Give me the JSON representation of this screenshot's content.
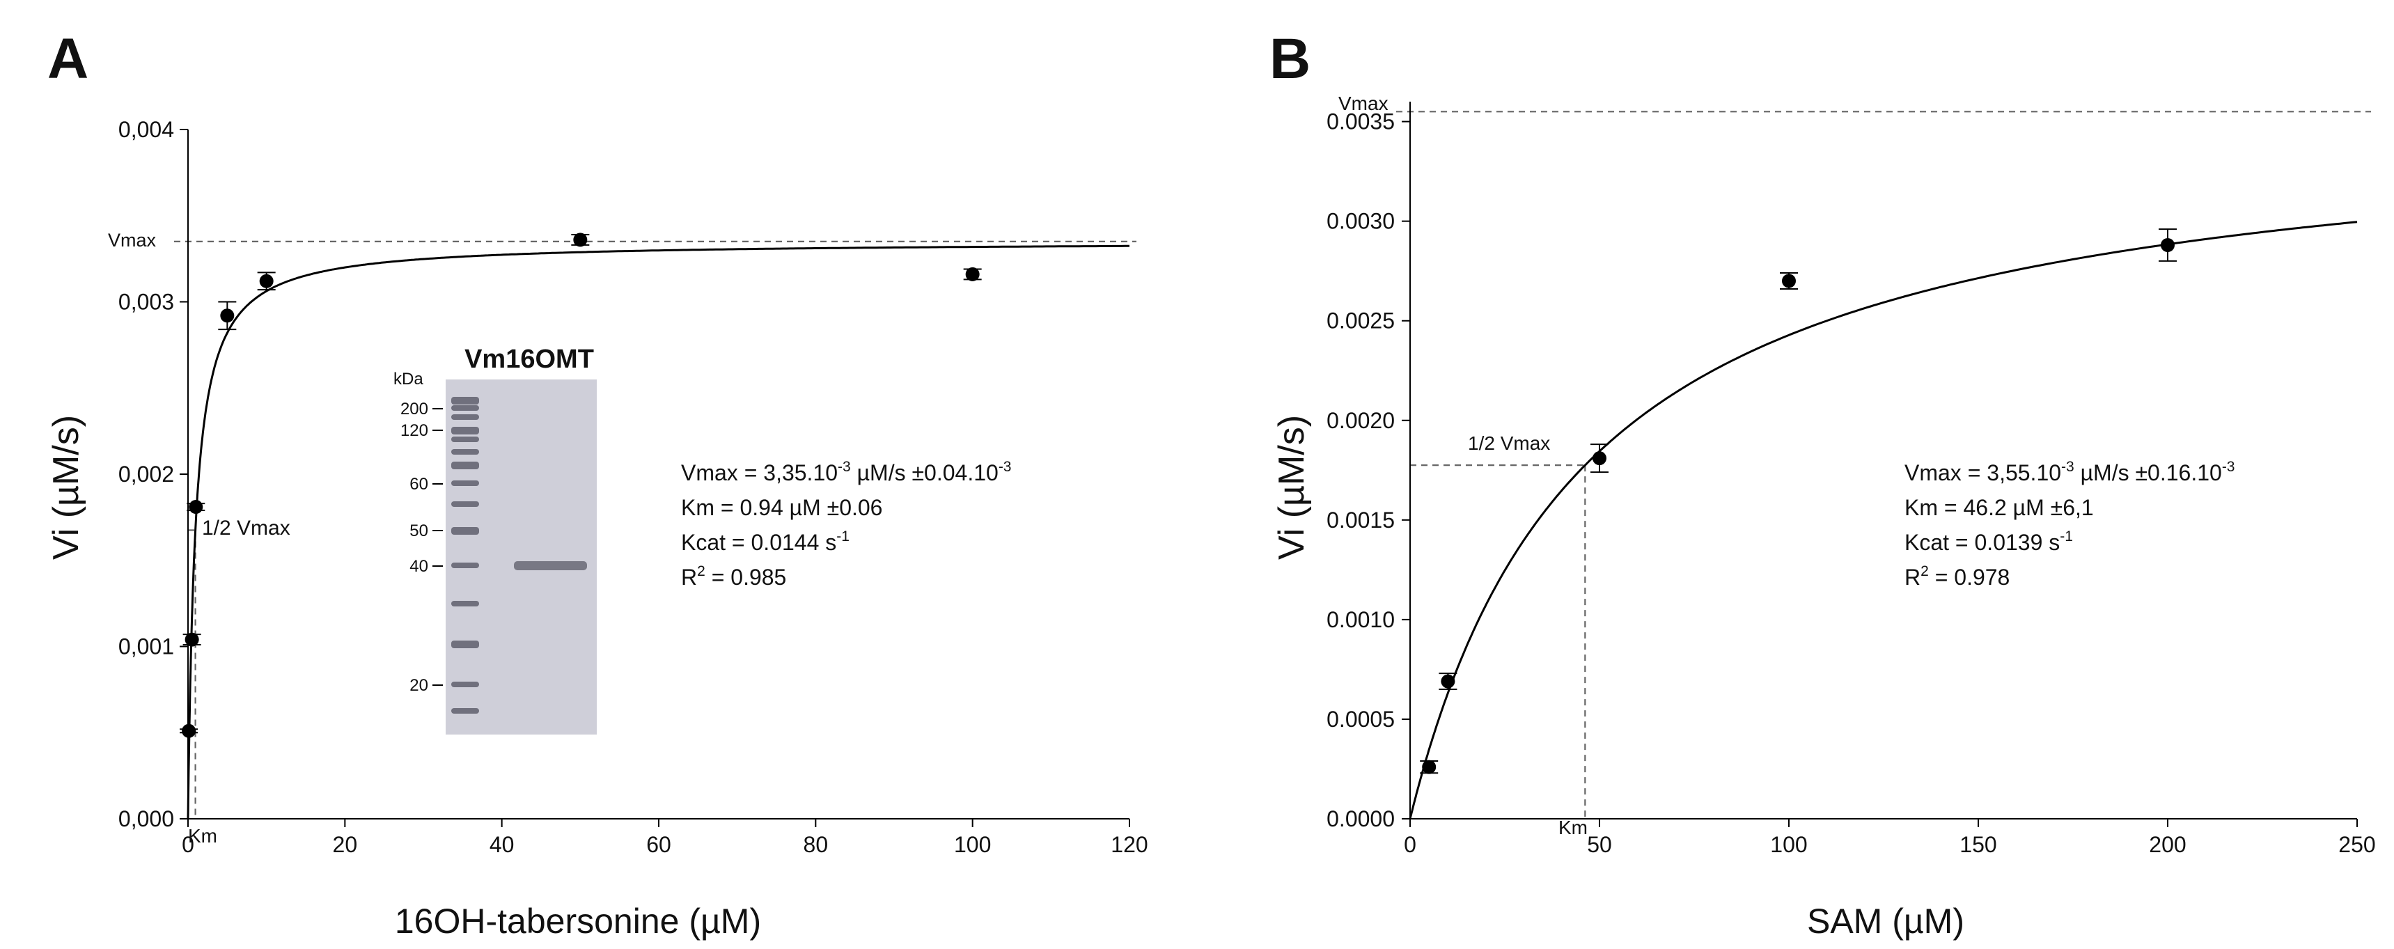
{
  "chart_data": [
    {
      "panel_label": "A",
      "type": "scatter",
      "title": "",
      "xlabel": "16OH-tabersonine (µM)",
      "ylabel": "Vi (µM/s)",
      "xlim": [
        0,
        120
      ],
      "ylim": [
        0,
        0.004
      ],
      "x_ticks": [
        0,
        20,
        40,
        60,
        80,
        100,
        120
      ],
      "x_tick_labels": [
        "0",
        "20",
        "40",
        "60",
        "80",
        "100",
        "120"
      ],
      "y_ticks": [
        0,
        0.001,
        0.002,
        0.003,
        0.004
      ],
      "y_tick_labels": [
        "0,000",
        "0,001",
        "0,002",
        "0,003",
        "0,004"
      ],
      "points": [
        {
          "x": 0.1,
          "y": 0.00051,
          "err": 1e-05
        },
        {
          "x": 0.5,
          "y": 0.00104,
          "err": 3e-05
        },
        {
          "x": 1,
          "y": 0.00181,
          "err": 2e-05
        },
        {
          "x": 5,
          "y": 0.00292,
          "err": 8e-05
        },
        {
          "x": 10,
          "y": 0.00312,
          "err": 5e-05
        },
        {
          "x": 50,
          "y": 0.00336,
          "err": 3e-05
        },
        {
          "x": 100,
          "y": 0.00316,
          "err": 3e-05
        }
      ],
      "fit": {
        "model": "michaelis-menten",
        "vmax": 0.00335,
        "km": 0.94
      },
      "guides": {
        "vmax_label": "Vmax",
        "half_vmax_label": "1/2 Vmax",
        "km_label": "Km"
      },
      "stats": [
        {
          "base": "Vmax = 3,35.10",
          "sup": "-3",
          "rest": " µM/s ±0.04.10",
          "sup2": "-3"
        },
        {
          "base": "Km = 0.94 µM ±0.06",
          "sup": "",
          "rest": "",
          "sup2": ""
        },
        {
          "base": "Kcat = 0.0144 s",
          "sup": "-1",
          "rest": "",
          "sup2": ""
        },
        {
          "base": "R",
          "sup": "2",
          "rest": " = 0.985",
          "sup2": ""
        }
      ],
      "inset": {
        "title": "Vm16OMT",
        "unit_label": "kDa",
        "markers": [
          "200",
          "120",
          "60",
          "50",
          "40",
          "20"
        ]
      }
    },
    {
      "panel_label": "B",
      "type": "scatter",
      "title": "",
      "xlabel": "SAM (µM)",
      "ylabel": "Vi (µM/s)",
      "xlim": [
        0,
        250
      ],
      "ylim": [
        0,
        0.0036
      ],
      "x_ticks": [
        0,
        50,
        100,
        150,
        200,
        250
      ],
      "x_tick_labels": [
        "0",
        "50",
        "100",
        "150",
        "200",
        "250"
      ],
      "y_ticks": [
        0,
        0.0005,
        0.001,
        0.0015,
        0.002,
        0.0025,
        0.003,
        0.0035
      ],
      "y_tick_labels": [
        "0.0000",
        "0.0005",
        "0.0010",
        "0.0015",
        "0.0020",
        "0.0025",
        "0.0030",
        "0.0035"
      ],
      "points": [
        {
          "x": 5,
          "y": 0.00026,
          "err": 3e-05
        },
        {
          "x": 10,
          "y": 0.00069,
          "err": 4e-05
        },
        {
          "x": 50,
          "y": 0.00181,
          "err": 7e-05
        },
        {
          "x": 100,
          "y": 0.0027,
          "err": 4e-05
        },
        {
          "x": 200,
          "y": 0.00288,
          "err": 8e-05
        }
      ],
      "fit": {
        "model": "michaelis-menten",
        "vmax": 0.00355,
        "km": 46.2
      },
      "guides": {
        "vmax_label": "Vmax",
        "half_vmax_label": "1/2 Vmax",
        "km_label": "Km"
      },
      "stats": [
        {
          "base": "Vmax = 3,55.10",
          "sup": "-3",
          "rest": " µM/s ±0.16.10",
          "sup2": "-3"
        },
        {
          "base": "Km = 46.2 µM ±6,1",
          "sup": "",
          "rest": "",
          "sup2": ""
        },
        {
          "base": "Kcat = 0.0139 s",
          "sup": "-1",
          "rest": "",
          "sup2": ""
        },
        {
          "base": "R",
          "sup": "2",
          "rest": " = 0.978",
          "sup2": ""
        }
      ]
    }
  ]
}
